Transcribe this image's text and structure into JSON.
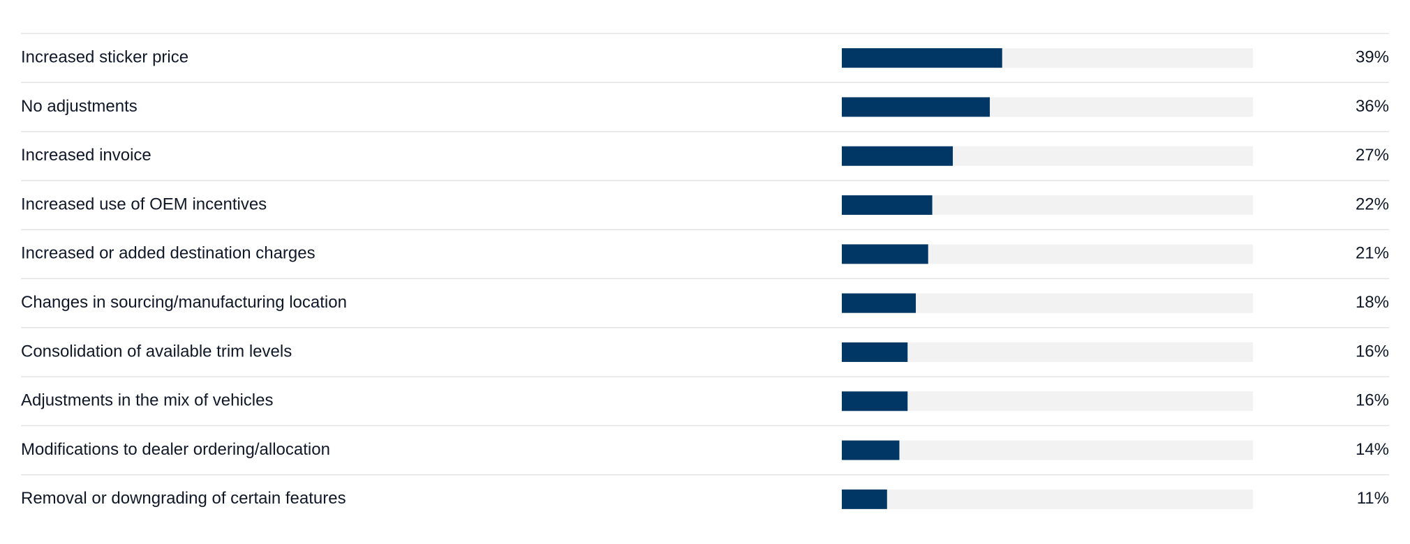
{
  "chart_data": {
    "type": "hbar",
    "categories": [
      "Increased sticker price",
      "No adjustments",
      "Increased invoice",
      "Increased use of OEM incentives",
      "Increased or added destination charges",
      "Changes in sourcing/manufacturing location",
      "Consolidation of available trim levels",
      "Adjustments in the mix of vehicles",
      "Modifications to dealer ordering/allocation",
      "Removal or downgrading of certain features"
    ],
    "values": [
      39,
      36,
      27,
      22,
      21,
      18,
      16,
      16,
      14,
      11
    ],
    "value_labels": [
      "39%",
      "36%",
      "27%",
      "22%",
      "21%",
      "18%",
      "16%",
      "16%",
      "14%",
      "11%"
    ],
    "xlim": [
      0,
      100
    ],
    "color": "#003764",
    "track_color": "#f2f2f2"
  }
}
